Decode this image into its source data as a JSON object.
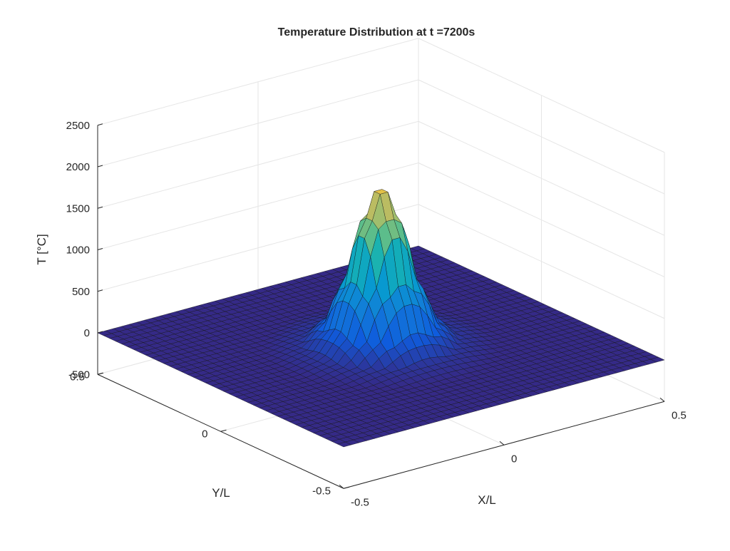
{
  "chart_data": {
    "type": "surface",
    "title": "Temperature Distribution at t =7200s",
    "xlabel": "X/L",
    "ylabel": "Y/L",
    "zlabel": "T [°C]",
    "xlim": [
      -0.5,
      0.5
    ],
    "ylim": [
      -0.5,
      0.5
    ],
    "zlim": [
      -500,
      2500
    ],
    "x_ticks": [
      "-0.5",
      "0",
      "0.5"
    ],
    "y_ticks": [
      "-0.5",
      "0",
      "0.5"
    ],
    "z_ticks": [
      "-500",
      "0",
      "500",
      "1000",
      "1500",
      "2000",
      "2500"
    ],
    "grid": true,
    "colormap": "parula",
    "surface": {
      "peak_center": [
        0,
        0
      ],
      "peak_value": 2000,
      "base_value": 0,
      "grid_resolution": 41,
      "samples": [
        {
          "r": 0.0,
          "T": 2000
        },
        {
          "r": 0.05,
          "T": 1500
        },
        {
          "r": 0.1,
          "T": 700
        },
        {
          "r": 0.15,
          "T": 230
        },
        {
          "r": 0.2,
          "T": 55
        },
        {
          "r": 0.3,
          "T": 0
        }
      ]
    },
    "colors": {
      "axis": "#262626",
      "grid": "#e6e6e6",
      "edge": "#141414",
      "background": "#ffffff"
    }
  }
}
